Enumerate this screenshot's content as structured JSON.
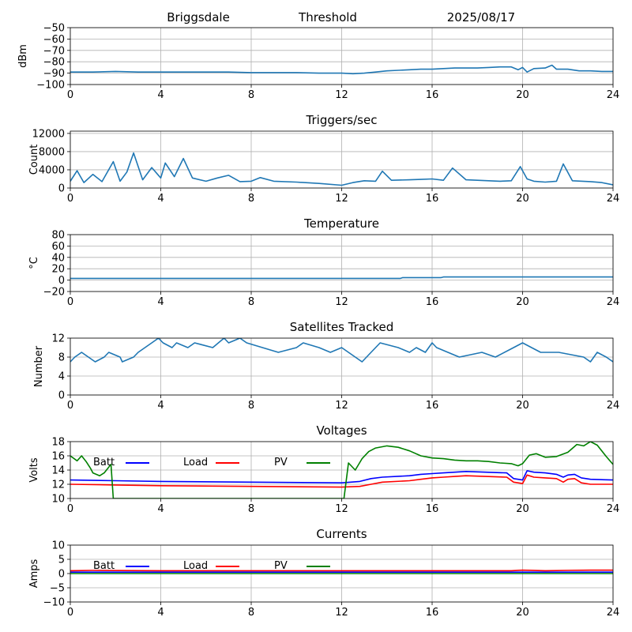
{
  "header": {
    "station": "Briggsdale",
    "mode": "Threshold",
    "date": "2025/08/17"
  },
  "legend": {
    "batt": "Batt",
    "load": "Load",
    "pv": "PV"
  },
  "colors": {
    "series": "#1f77b4",
    "batt": "#0000ff",
    "load": "#ff0000",
    "pv": "#008000",
    "grid": "#b0b0b0"
  },
  "chart_data": [
    {
      "id": "threshold",
      "type": "line",
      "title": "",
      "xlabel": "",
      "ylabel": "dBm",
      "xlim": [
        0,
        24
      ],
      "ylim": [
        -100,
        -50
      ],
      "xticks": [
        0,
        4,
        8,
        12,
        16,
        20,
        24
      ],
      "yticks": [
        -100,
        -90,
        -80,
        -70,
        -60,
        -50
      ],
      "grid": true,
      "series": [
        {
          "x": [
            0,
            1,
            2,
            3,
            4,
            5,
            6,
            7,
            8,
            9,
            10,
            11,
            12,
            12.5,
            13,
            13.5,
            14,
            14.5,
            15,
            15.5,
            16,
            16.5,
            17,
            17.5,
            18,
            18.5,
            19,
            19.5,
            19.8,
            20,
            20.2,
            20.5,
            21,
            21.3,
            21.5,
            22,
            22.5,
            23,
            23.5,
            24
          ],
          "values": [
            -89,
            -89,
            -88.5,
            -89,
            -89,
            -89,
            -89,
            -89,
            -89.5,
            -89.5,
            -89.5,
            -90,
            -90,
            -90.5,
            -90,
            -89,
            -88,
            -87.5,
            -87,
            -86.5,
            -86.5,
            -86,
            -85.5,
            -85.5,
            -85.5,
            -85,
            -84.5,
            -84.5,
            -87,
            -85,
            -89,
            -86,
            -85.5,
            -83,
            -86.5,
            -86.5,
            -88,
            -88,
            -88.5,
            -88.5
          ]
        }
      ]
    },
    {
      "id": "triggers",
      "type": "line",
      "title": "Triggers/sec",
      "xlabel": "",
      "ylabel": "Count",
      "xlim": [
        0,
        24
      ],
      "ylim": [
        0,
        12500
      ],
      "xticks": [
        0,
        4,
        8,
        12,
        16,
        20,
        24
      ],
      "yticks": [
        0,
        4000,
        8000,
        12000
      ],
      "grid": true,
      "series": [
        {
          "x": [
            0,
            0.3,
            0.6,
            1,
            1.4,
            1.9,
            2.2,
            2.5,
            2.8,
            3.2,
            3.6,
            4,
            4.2,
            4.6,
            5,
            5.4,
            6,
            6.5,
            7,
            7.5,
            8,
            8.4,
            9,
            10,
            11,
            12,
            12.5,
            13,
            13.5,
            13.8,
            14.2,
            15,
            15.5,
            16,
            16.5,
            16.9,
            17.5,
            18,
            18.5,
            19,
            19.5,
            19.9,
            20.2,
            20.5,
            21,
            21.5,
            21.8,
            22.2,
            23,
            23.5,
            24
          ],
          "values": [
            1500,
            3800,
            1200,
            3000,
            1400,
            5800,
            1500,
            3500,
            7700,
            1800,
            4500,
            2200,
            5500,
            2500,
            6500,
            2200,
            1500,
            2200,
            2800,
            1400,
            1500,
            2300,
            1500,
            1300,
            1000,
            600,
            1200,
            1600,
            1500,
            3700,
            1700,
            1800,
            1900,
            2000,
            1700,
            4400,
            1800,
            1700,
            1600,
            1500,
            1600,
            4700,
            2000,
            1500,
            1300,
            1500,
            5300,
            1600,
            1400,
            1200,
            700
          ]
        }
      ]
    },
    {
      "id": "temperature",
      "type": "line",
      "title": "Temperature",
      "xlabel": "",
      "ylabel": "°C",
      "xlim": [
        0,
        24
      ],
      "ylim": [
        -20,
        80
      ],
      "xticks": [
        0,
        4,
        8,
        12,
        16,
        20,
        24
      ],
      "yticks": [
        -20,
        0,
        20,
        40,
        60,
        80
      ],
      "grid": true,
      "series": [
        {
          "x": [
            0,
            4,
            8,
            12,
            14.6,
            14.7,
            16.4,
            16.5,
            24
          ],
          "values": [
            3,
            3,
            3,
            3,
            3,
            4.5,
            4.5,
            5.5,
            5.5
          ]
        }
      ]
    },
    {
      "id": "satellites",
      "type": "line",
      "title": "Satellites Tracked",
      "xlabel": "",
      "ylabel": "Number",
      "xlim": [
        0,
        24
      ],
      "ylim": [
        0,
        12
      ],
      "xticks": [
        0,
        4,
        8,
        12,
        16,
        20,
        24
      ],
      "yticks": [
        0,
        4,
        8,
        12
      ],
      "grid": true,
      "series": [
        {
          "x": [
            0,
            0.2,
            0.5,
            0.8,
            1.1,
            1.5,
            1.7,
            2.2,
            2.3,
            2.8,
            3.0,
            3.3,
            3.6,
            3.9,
            4.1,
            4.5,
            4.7,
            5.2,
            5.5,
            6.3,
            6.8,
            7.0,
            7.5,
            7.8,
            8.5,
            9.2,
            10.0,
            10.3,
            11.0,
            11.5,
            12.0,
            12.3,
            12.6,
            12.9,
            13.3,
            13.7,
            14.5,
            15.0,
            15.3,
            15.7,
            16.0,
            16.2,
            16.7,
            17.2,
            18.2,
            18.8,
            19.6,
            20.0,
            20.4,
            20.8,
            21.6,
            22.7,
            23.0,
            23.3,
            23.7,
            24
          ],
          "values": [
            7,
            8,
            9,
            8,
            7,
            8,
            9,
            8,
            7,
            8,
            9,
            10,
            11,
            12,
            11,
            10,
            11,
            10,
            11,
            10,
            12,
            11,
            12,
            11,
            10,
            9,
            10,
            11,
            10,
            9,
            10,
            9,
            8,
            7,
            9,
            11,
            10,
            9,
            10,
            9,
            11,
            10,
            9,
            8,
            9,
            8,
            10,
            11,
            10,
            9,
            9,
            8,
            7,
            9,
            8,
            7
          ]
        }
      ]
    },
    {
      "id": "voltages",
      "type": "line",
      "title": "Voltages",
      "xlabel": "",
      "ylabel": "Volts",
      "xlim": [
        0,
        24
      ],
      "ylim": [
        10,
        18
      ],
      "xticks": [
        0,
        4,
        8,
        12,
        16,
        20,
        24
      ],
      "yticks": [
        10,
        12,
        14,
        16,
        18
      ],
      "grid": true,
      "legend": "top",
      "series": [
        {
          "name": "Batt",
          "x": [
            0,
            2,
            4,
            8,
            12,
            12.8,
            13.3,
            13.8,
            15,
            15.5,
            16,
            16.5,
            17,
            17.5,
            19.3,
            19.6,
            20.0,
            20.2,
            20.5,
            21,
            21.5,
            21.8,
            22.0,
            22.3,
            22.6,
            23.0,
            24
          ],
          "values": [
            12.6,
            12.5,
            12.4,
            12.3,
            12.2,
            12.4,
            12.8,
            13.0,
            13.2,
            13.4,
            13.5,
            13.6,
            13.7,
            13.8,
            13.6,
            12.8,
            12.6,
            13.9,
            13.7,
            13.6,
            13.4,
            13.0,
            13.3,
            13.4,
            12.9,
            12.7,
            12.6
          ]
        },
        {
          "name": "Load",
          "x": [
            0,
            2,
            4,
            8,
            12,
            12.8,
            13.3,
            13.8,
            15,
            15.5,
            16,
            16.5,
            17,
            17.5,
            19.3,
            19.6,
            20.0,
            20.2,
            20.5,
            21,
            21.5,
            21.8,
            22.0,
            22.3,
            22.6,
            23.0,
            24
          ],
          "values": [
            12.0,
            11.9,
            11.8,
            11.7,
            11.6,
            11.7,
            12.0,
            12.3,
            12.5,
            12.7,
            12.9,
            13.0,
            13.1,
            13.2,
            13.0,
            12.3,
            12.1,
            13.3,
            13.0,
            12.9,
            12.8,
            12.3,
            12.7,
            12.8,
            12.2,
            12.0,
            12.0
          ]
        },
        {
          "name": "PV",
          "x": [
            0,
            0.3,
            0.5,
            0.7,
            0.9,
            1.0,
            1.3,
            1.5,
            1.8,
            1.9,
            12.1,
            12.3,
            12.6,
            12.9,
            13.2,
            13.5,
            14.0,
            14.5,
            15.0,
            15.5,
            16.0,
            16.5,
            17.0,
            17.5,
            18.0,
            18.5,
            19.0,
            19.5,
            19.8,
            20.0,
            20.3,
            20.6,
            21.0,
            21.5,
            22.0,
            22.4,
            22.7,
            23.0,
            23.3,
            23.7,
            24
          ],
          "values": [
            16.0,
            15.3,
            16.0,
            15.2,
            14.2,
            13.6,
            13.2,
            13.6,
            14.8,
            10.0,
            10.0,
            15.0,
            14.0,
            15.6,
            16.6,
            17.1,
            17.4,
            17.2,
            16.7,
            16.0,
            15.7,
            15.6,
            15.4,
            15.3,
            15.3,
            15.2,
            15.0,
            14.9,
            14.6,
            14.9,
            16.1,
            16.3,
            15.8,
            15.9,
            16.5,
            17.6,
            17.4,
            18.0,
            17.5,
            15.9,
            14.8
          ]
        }
      ]
    },
    {
      "id": "currents",
      "type": "line",
      "title": "Currents",
      "xlabel": "",
      "ylabel": "Amps",
      "xlim": [
        0,
        24
      ],
      "ylim": [
        -10,
        10
      ],
      "xticks": [
        0,
        4,
        8,
        12,
        16,
        20,
        24
      ],
      "yticks": [
        -10,
        -5,
        0,
        5,
        10
      ],
      "grid": true,
      "legend": "top",
      "series": [
        {
          "name": "Batt",
          "x": [
            0,
            8,
            16,
            24
          ],
          "values": [
            0.5,
            0.5,
            0.5,
            0.5
          ]
        },
        {
          "name": "Load",
          "x": [
            0,
            1,
            4,
            8,
            12,
            16,
            19.5,
            20,
            21,
            22,
            23,
            24
          ],
          "values": [
            1.0,
            1.1,
            1.0,
            1.0,
            1.0,
            1.0,
            1.0,
            1.2,
            1.0,
            1.1,
            1.2,
            1.2
          ]
        },
        {
          "name": "PV",
          "x": [
            0,
            12,
            24
          ],
          "values": [
            0.0,
            0.0,
            0.0
          ]
        }
      ]
    }
  ]
}
